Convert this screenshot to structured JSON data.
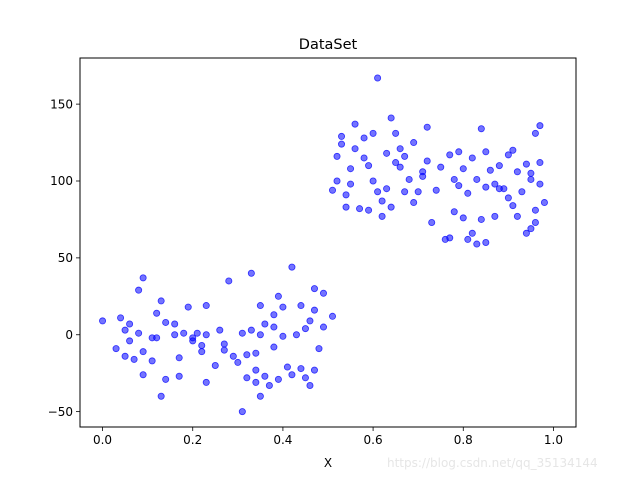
{
  "colors": {
    "marker": "#0000ff",
    "axis": "#000000",
    "background": "#ffffff"
  },
  "watermark": "https://blog.csdn.net/qq_35134144",
  "chart_data": {
    "type": "scatter",
    "title": "DataSet",
    "xlabel": "X",
    "ylabel": "",
    "xlim": [
      -0.05,
      1.05
    ],
    "ylim": [
      -60,
      180
    ],
    "xticks": [
      0.0,
      0.2,
      0.4,
      0.6,
      0.8,
      1.0
    ],
    "xtick_labels": [
      "0.0",
      "0.2",
      "0.4",
      "0.6",
      "0.8",
      "1.0"
    ],
    "yticks": [
      -50,
      0,
      50,
      100,
      150
    ],
    "ytick_labels": [
      "−50",
      "0",
      "50",
      "100",
      "150"
    ],
    "grid": false,
    "legend": "none",
    "marker_color": "#0000ff",
    "series": [
      {
        "points": [
          [
            0.0,
            9
          ],
          [
            0.03,
            -9
          ],
          [
            0.04,
            11
          ],
          [
            0.05,
            3
          ],
          [
            0.05,
            -14
          ],
          [
            0.06,
            -4
          ],
          [
            0.06,
            7
          ],
          [
            0.07,
            -16
          ],
          [
            0.08,
            1
          ],
          [
            0.08,
            29
          ],
          [
            0.09,
            37
          ],
          [
            0.09,
            -26
          ],
          [
            0.09,
            -11
          ],
          [
            0.11,
            -17
          ],
          [
            0.11,
            -2
          ],
          [
            0.12,
            14
          ],
          [
            0.12,
            -2
          ],
          [
            0.13,
            22
          ],
          [
            0.13,
            -40
          ],
          [
            0.14,
            8
          ],
          [
            0.14,
            -29
          ],
          [
            0.16,
            7
          ],
          [
            0.16,
            0
          ],
          [
            0.17,
            -15
          ],
          [
            0.17,
            -27
          ],
          [
            0.18,
            1
          ],
          [
            0.19,
            18
          ],
          [
            0.2,
            -2
          ],
          [
            0.2,
            -4
          ],
          [
            0.21,
            1
          ],
          [
            0.22,
            -11
          ],
          [
            0.22,
            -7
          ],
          [
            0.23,
            19
          ],
          [
            0.23,
            -31
          ],
          [
            0.23,
            0
          ],
          [
            0.25,
            -20
          ],
          [
            0.26,
            3
          ],
          [
            0.27,
            -6
          ],
          [
            0.27,
            -10
          ],
          [
            0.28,
            35
          ],
          [
            0.29,
            -14
          ],
          [
            0.3,
            -18
          ],
          [
            0.31,
            1
          ],
          [
            0.31,
            -50
          ],
          [
            0.32,
            -28
          ],
          [
            0.32,
            -13
          ],
          [
            0.33,
            40
          ],
          [
            0.33,
            3
          ],
          [
            0.34,
            -23
          ],
          [
            0.34,
            -12
          ],
          [
            0.34,
            -31
          ],
          [
            0.35,
            19
          ],
          [
            0.35,
            0
          ],
          [
            0.35,
            -40
          ],
          [
            0.36,
            7
          ],
          [
            0.36,
            -27
          ],
          [
            0.37,
            -33
          ],
          [
            0.38,
            -8
          ],
          [
            0.38,
            5
          ],
          [
            0.38,
            13
          ],
          [
            0.39,
            25
          ],
          [
            0.39,
            -29
          ],
          [
            0.4,
            -1
          ],
          [
            0.4,
            18
          ],
          [
            0.41,
            -21
          ],
          [
            0.42,
            -26
          ],
          [
            0.42,
            44
          ],
          [
            0.43,
            0
          ],
          [
            0.44,
            -22
          ],
          [
            0.44,
            19
          ],
          [
            0.45,
            -28
          ],
          [
            0.45,
            4
          ],
          [
            0.46,
            -33
          ],
          [
            0.46,
            9
          ],
          [
            0.47,
            -23
          ],
          [
            0.47,
            16
          ],
          [
            0.47,
            30
          ],
          [
            0.48,
            -9
          ],
          [
            0.49,
            27
          ],
          [
            0.49,
            5
          ],
          [
            0.51,
            12
          ],
          [
            0.51,
            94
          ],
          [
            0.52,
            100
          ],
          [
            0.52,
            116
          ],
          [
            0.53,
            124
          ],
          [
            0.53,
            129
          ],
          [
            0.54,
            83
          ],
          [
            0.54,
            91
          ],
          [
            0.55,
            98
          ],
          [
            0.55,
            108
          ],
          [
            0.56,
            137
          ],
          [
            0.56,
            121
          ],
          [
            0.57,
            82
          ],
          [
            0.58,
            128
          ],
          [
            0.58,
            115
          ],
          [
            0.59,
            110
          ],
          [
            0.59,
            81
          ],
          [
            0.6,
            100
          ],
          [
            0.6,
            131
          ],
          [
            0.61,
            167
          ],
          [
            0.61,
            93
          ],
          [
            0.62,
            77
          ],
          [
            0.62,
            87
          ],
          [
            0.63,
            118
          ],
          [
            0.63,
            95
          ],
          [
            0.64,
            83
          ],
          [
            0.64,
            141
          ],
          [
            0.65,
            112
          ],
          [
            0.65,
            131
          ],
          [
            0.66,
            109
          ],
          [
            0.66,
            121
          ],
          [
            0.67,
            93
          ],
          [
            0.67,
            116
          ],
          [
            0.68,
            101
          ],
          [
            0.69,
            125
          ],
          [
            0.69,
            86
          ],
          [
            0.7,
            93
          ],
          [
            0.71,
            106
          ],
          [
            0.71,
            103
          ],
          [
            0.72,
            135
          ],
          [
            0.72,
            113
          ],
          [
            0.73,
            73
          ],
          [
            0.74,
            94
          ],
          [
            0.75,
            109
          ],
          [
            0.76,
            62
          ],
          [
            0.77,
            117
          ],
          [
            0.77,
            63
          ],
          [
            0.78,
            101
          ],
          [
            0.78,
            80
          ],
          [
            0.79,
            119
          ],
          [
            0.79,
            97
          ],
          [
            0.8,
            108
          ],
          [
            0.8,
            76
          ],
          [
            0.81,
            92
          ],
          [
            0.81,
            62
          ],
          [
            0.82,
            115
          ],
          [
            0.82,
            66
          ],
          [
            0.83,
            59
          ],
          [
            0.83,
            101
          ],
          [
            0.84,
            134
          ],
          [
            0.84,
            75
          ],
          [
            0.85,
            96
          ],
          [
            0.85,
            119
          ],
          [
            0.85,
            60
          ],
          [
            0.86,
            107
          ],
          [
            0.87,
            77
          ],
          [
            0.87,
            98
          ],
          [
            0.88,
            110
          ],
          [
            0.88,
            95
          ],
          [
            0.89,
            95
          ],
          [
            0.9,
            89
          ],
          [
            0.9,
            117
          ],
          [
            0.91,
            84
          ],
          [
            0.91,
            120
          ],
          [
            0.92,
            77
          ],
          [
            0.92,
            106
          ],
          [
            0.93,
            93
          ],
          [
            0.94,
            111
          ],
          [
            0.94,
            66
          ],
          [
            0.95,
            69
          ],
          [
            0.95,
            101
          ],
          [
            0.95,
            105
          ],
          [
            0.96,
            131
          ],
          [
            0.96,
            73
          ],
          [
            0.96,
            81
          ],
          [
            0.97,
            136
          ],
          [
            0.97,
            112
          ],
          [
            0.97,
            98
          ],
          [
            0.98,
            86
          ]
        ]
      }
    ]
  }
}
